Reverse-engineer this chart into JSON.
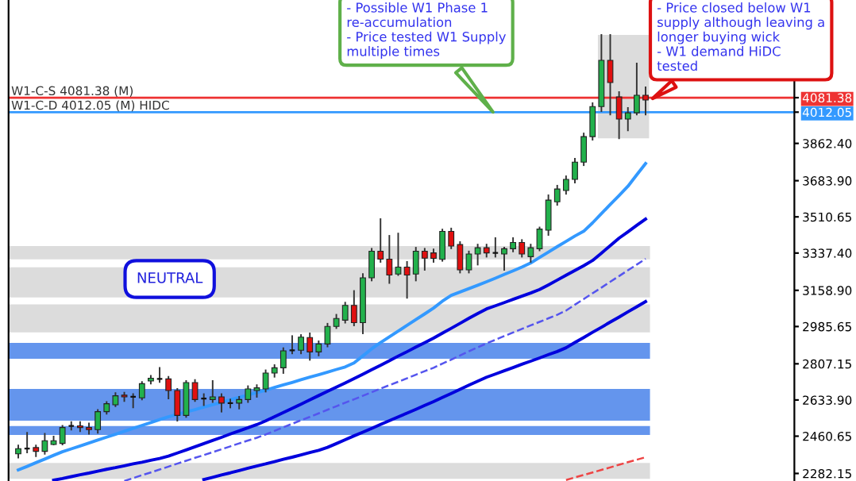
{
  "chart_data": {
    "type": "candlestick",
    "categories": [
      null,
      null,
      null,
      null,
      null,
      null,
      null,
      null,
      null,
      null,
      null,
      null,
      null,
      null,
      null,
      null,
      null,
      null,
      null,
      null,
      null,
      null,
      null,
      null,
      null,
      null,
      null,
      null,
      null,
      null,
      null,
      null,
      null,
      null,
      null,
      null,
      null,
      null,
      null,
      null,
      null,
      null,
      null,
      null,
      null,
      null,
      null,
      null,
      null,
      null,
      null,
      null,
      null,
      null,
      null,
      null,
      null,
      null,
      null,
      null,
      null,
      null,
      null,
      null,
      null,
      null,
      null,
      null,
      null,
      null,
      null,
      null
    ],
    "ohlc": [
      [
        2376,
        2416,
        2358,
        2401
      ],
      [
        2401,
        2477,
        2383,
        2401
      ],
      [
        2406,
        2416,
        2365,
        2388
      ],
      [
        2388,
        2472,
        2376,
        2439
      ],
      [
        2421,
        2459,
        2421,
        2439
      ],
      [
        2426,
        2510,
        2421,
        2502
      ],
      [
        2510,
        2528,
        2492,
        2510
      ],
      [
        2510,
        2528,
        2484,
        2502
      ],
      [
        2502,
        2522,
        2472,
        2492
      ],
      [
        2492,
        2586,
        2477,
        2578
      ],
      [
        2578,
        2624,
        2568,
        2616
      ],
      [
        2611,
        2667,
        2604,
        2654
      ],
      [
        2657,
        2669,
        2629,
        2649
      ],
      [
        2649,
        2662,
        2598,
        2649
      ],
      [
        2644,
        2720,
        2636,
        2712
      ],
      [
        2725,
        2750,
        2712,
        2738
      ],
      [
        2735,
        2788,
        2720,
        2735
      ],
      [
        2735,
        2745,
        2641,
        2679
      ],
      [
        2679,
        2687,
        2535,
        2560
      ],
      [
        2560,
        2725,
        2553,
        2717
      ],
      [
        2717,
        2730,
        2629,
        2636
      ],
      [
        2641,
        2662,
        2609,
        2641
      ],
      [
        2636,
        2725,
        2624,
        2649
      ],
      [
        2649,
        2662,
        2578,
        2619
      ],
      [
        2619,
        2636,
        2598,
        2619
      ],
      [
        2619,
        2649,
        2593,
        2636
      ],
      [
        2636,
        2700,
        2624,
        2687
      ],
      [
        2679,
        2705,
        2649,
        2692
      ],
      [
        2687,
        2776,
        2674,
        2763
      ],
      [
        2763,
        2801,
        2745,
        2788
      ],
      [
        2788,
        2882,
        2763,
        2869
      ],
      [
        2872,
        2940,
        2857,
        2872
      ],
      [
        2872,
        2945,
        2857,
        2935
      ],
      [
        2933,
        2953,
        2826,
        2864
      ],
      [
        2864,
        2915,
        2847,
        2902
      ],
      [
        2902,
        2999,
        2890,
        2986
      ],
      [
        2986,
        3042,
        2978,
        3024
      ],
      [
        3016,
        3100,
        3004,
        3087
      ],
      [
        3087,
        3156,
        2991,
        3004
      ],
      [
        3004,
        3237,
        2953,
        3219
      ],
      [
        3219,
        3358,
        3206,
        3346
      ],
      [
        3346,
        3500,
        3295,
        3308
      ],
      [
        3308,
        3420,
        3194,
        3232
      ],
      [
        3237,
        3431,
        3232,
        3270
      ],
      [
        3270,
        3295,
        3123,
        3232
      ],
      [
        3237,
        3363,
        3206,
        3346
      ],
      [
        3346,
        3358,
        3257,
        3313
      ],
      [
        3338,
        3355,
        3295,
        3312
      ],
      [
        3307,
        3450,
        3300,
        3441
      ],
      [
        3441,
        3455,
        3360,
        3371
      ],
      [
        3378,
        3390,
        3244,
        3257
      ],
      [
        3257,
        3345,
        3244,
        3333
      ],
      [
        3333,
        3378,
        3282,
        3363
      ],
      [
        3363,
        3378,
        3320,
        3338
      ],
      [
        3338,
        3409,
        3320,
        3338
      ],
      [
        3333,
        3363,
        3257,
        3358
      ],
      [
        3358,
        3409,
        3345,
        3388
      ],
      [
        3388,
        3400,
        3320,
        3333
      ],
      [
        3320,
        3378,
        3295,
        3363
      ],
      [
        3358,
        3460,
        3350,
        3452
      ],
      [
        3447,
        3614,
        3424,
        3591
      ],
      [
        3583,
        3660,
        3568,
        3644
      ],
      [
        3637,
        3705,
        3621,
        3690
      ],
      [
        3690,
        3789,
        3675,
        3773
      ],
      [
        3773,
        3910,
        3758,
        3895
      ],
      [
        3895,
        4055,
        3880,
        4039
      ],
      [
        4039,
        4382,
        4017,
        4260
      ],
      [
        4260,
        4382,
        4001,
        4154
      ],
      [
        4085,
        4108,
        3887,
        3979
      ],
      [
        3979,
        4032,
        3925,
        4009
      ],
      [
        4009,
        4245,
        4001,
        4093
      ],
      [
        4093,
        4131,
        4001,
        4070
      ]
    ],
    "series": [
      {
        "type": "line",
        "color": "#3399ff",
        "values": [
          2299,
          2316,
          2334,
          2351,
          2369,
          2386,
          2400,
          2414,
          2428,
          2442,
          2456,
          2470,
          2484,
          2498,
          2512,
          2526,
          2540,
          2553,
          2565,
          2577,
          2588,
          2600,
          2611,
          2623,
          2635,
          2646,
          2658,
          2669,
          2681,
          2694,
          2706,
          2718,
          2731,
          2743,
          2755,
          2767,
          2780,
          2792,
          2811,
          2845,
          2879,
          2909,
          2936,
          2964,
          2991,
          3019,
          3046,
          3074,
          3107,
          3135,
          3151,
          3167,
          3183,
          3200,
          3217,
          3235,
          3252,
          3270,
          3290,
          3316,
          3342,
          3368,
          3393,
          3419,
          3442,
          3482,
          3526,
          3570,
          3613,
          3657,
          3712,
          3766
        ]
      },
      {
        "type": "line",
        "color": "#0000dd",
        "values": [
          null,
          null,
          null,
          null,
          2250,
          2258,
          2267,
          2276,
          2284,
          2293,
          2302,
          2310,
          2319,
          2328,
          2336,
          2345,
          2354,
          2365,
          2380,
          2395,
          2410,
          2425,
          2440,
          2455,
          2471,
          2486,
          2501,
          2516,
          2534,
          2554,
          2574,
          2594,
          2614,
          2635,
          2655,
          2675,
          2695,
          2715,
          2736,
          2757,
          2779,
          2800,
          2822,
          2844,
          2865,
          2887,
          2908,
          2930,
          2954,
          2977,
          3001,
          3025,
          3048,
          3070,
          3085,
          3100,
          3116,
          3131,
          3146,
          3163,
          3185,
          3208,
          3231,
          3254,
          3277,
          3302,
          3337,
          3373,
          3409,
          3439,
          3470,
          3500
        ]
      },
      {
        "type": "line",
        "color": "#5555ee",
        "line_style": "dashed",
        "values": [
          null,
          null,
          null,
          null,
          null,
          null,
          null,
          null,
          null,
          null,
          null,
          null,
          2246,
          2260,
          2274,
          2287,
          2301,
          2315,
          2329,
          2343,
          2357,
          2370,
          2384,
          2398,
          2412,
          2426,
          2440,
          2453,
          2469,
          2486,
          2503,
          2520,
          2537,
          2553,
          2570,
          2587,
          2604,
          2621,
          2637,
          2654,
          2671,
          2688,
          2705,
          2721,
          2738,
          2755,
          2772,
          2788,
          2808,
          2827,
          2847,
          2867,
          2886,
          2905,
          2922,
          2940,
          2957,
          2974,
          2991,
          3008,
          3025,
          3042,
          3062,
          3090,
          3117,
          3145,
          3172,
          3200,
          3227,
          3255,
          3282,
          3310
        ]
      },
      {
        "type": "line",
        "color": "#0000dd",
        "values": [
          null,
          null,
          null,
          null,
          null,
          null,
          null,
          null,
          null,
          null,
          null,
          null,
          null,
          null,
          null,
          null,
          null,
          null,
          null,
          null,
          null,
          2253,
          2264,
          2275,
          2285,
          2296,
          2307,
          2318,
          2328,
          2339,
          2350,
          2360,
          2371,
          2382,
          2393,
          2407,
          2425,
          2444,
          2462,
          2480,
          2498,
          2517,
          2535,
          2553,
          2571,
          2589,
          2608,
          2626,
          2646,
          2665,
          2685,
          2705,
          2724,
          2743,
          2758,
          2774,
          2789,
          2805,
          2820,
          2835,
          2851,
          2866,
          2884,
          2909,
          2933,
          2958,
          2982,
          3007,
          3031,
          3056,
          3080,
          3105
        ]
      },
      {
        "type": "line",
        "color": "#ee4444",
        "line_style": "dashed",
        "values": [
          null,
          null,
          null,
          null,
          null,
          null,
          null,
          null,
          null,
          null,
          null,
          null,
          null,
          null,
          null,
          null,
          null,
          null,
          null,
          null,
          null,
          null,
          null,
          null,
          null,
          null,
          null,
          null,
          null,
          null,
          null,
          null,
          null,
          null,
          null,
          null,
          null,
          null,
          null,
          null,
          null,
          null,
          null,
          null,
          null,
          null,
          null,
          null,
          null,
          null,
          null,
          null,
          null,
          null,
          null,
          null,
          null,
          null,
          null,
          null,
          null,
          null,
          2251,
          2263,
          2275,
          2287,
          2299,
          2311,
          2324,
          2336,
          2348,
          2360
        ]
      }
    ],
    "ylim": [
      2246,
      4549
    ],
    "yticks": [
      2282.15,
      2460.65,
      {
        "value": 2633.9,
        "label": "2633.90"
      },
      2807.15,
      2985.65,
      {
        "value": 3158.9,
        "label": "3158.90"
      },
      {
        "value": 3337.4,
        "label": "3337.40"
      },
      3510.65,
      {
        "value": 3683.9,
        "label": "3683.90"
      },
      {
        "value": 3862.4,
        "label": "3862.40"
      },
      {
        "value": 4012.05,
        "label": "4012.05"
      },
      {
        "value": 4081.38,
        "label": "4081.38"
      }
    ],
    "tick_labels": "y",
    "grid": false,
    "ref_lines": [
      {
        "axis": "y",
        "value": 4081.38,
        "label": "W1-C-S 4081.38 (M)",
        "color": "#ee3333"
      },
      {
        "axis": "y",
        "value": 4012.05,
        "label": "W1-C-D 4012.05 (M) HIDC",
        "color": "#3399ff"
      }
    ],
    "bands": [
      {
        "axis": "y",
        "from": 3307,
        "to": 3371,
        "color": "#dcdcdc"
      },
      {
        "axis": "y",
        "from": 3125,
        "to": 3269,
        "color": "#dcdcdc"
      },
      {
        "axis": "y",
        "from": 2958,
        "to": 3092,
        "color": "#dcdcdc"
      },
      {
        "axis": "y",
        "from": 2831,
        "to": 2907,
        "color": "#6495ed"
      },
      {
        "axis": "y",
        "from": 2535,
        "to": 2687,
        "color": "#6495ed"
      },
      {
        "axis": "y",
        "from": 2466,
        "to": 2509,
        "color": "#6495ed"
      },
      {
        "axis": "y",
        "from": 2256,
        "to": 2332,
        "color": "#dcdcdc"
      }
    ],
    "annotations": [
      "- Possible W1 Phase 1\nre-accumulation\n- Price tested W1 Supply\nmultiple times",
      "- Price closed below W1\nsupply although leaving a\nlonger buying wick\n- W1 demand HiDC\ntested",
      "NEUTRAL"
    ]
  }
}
